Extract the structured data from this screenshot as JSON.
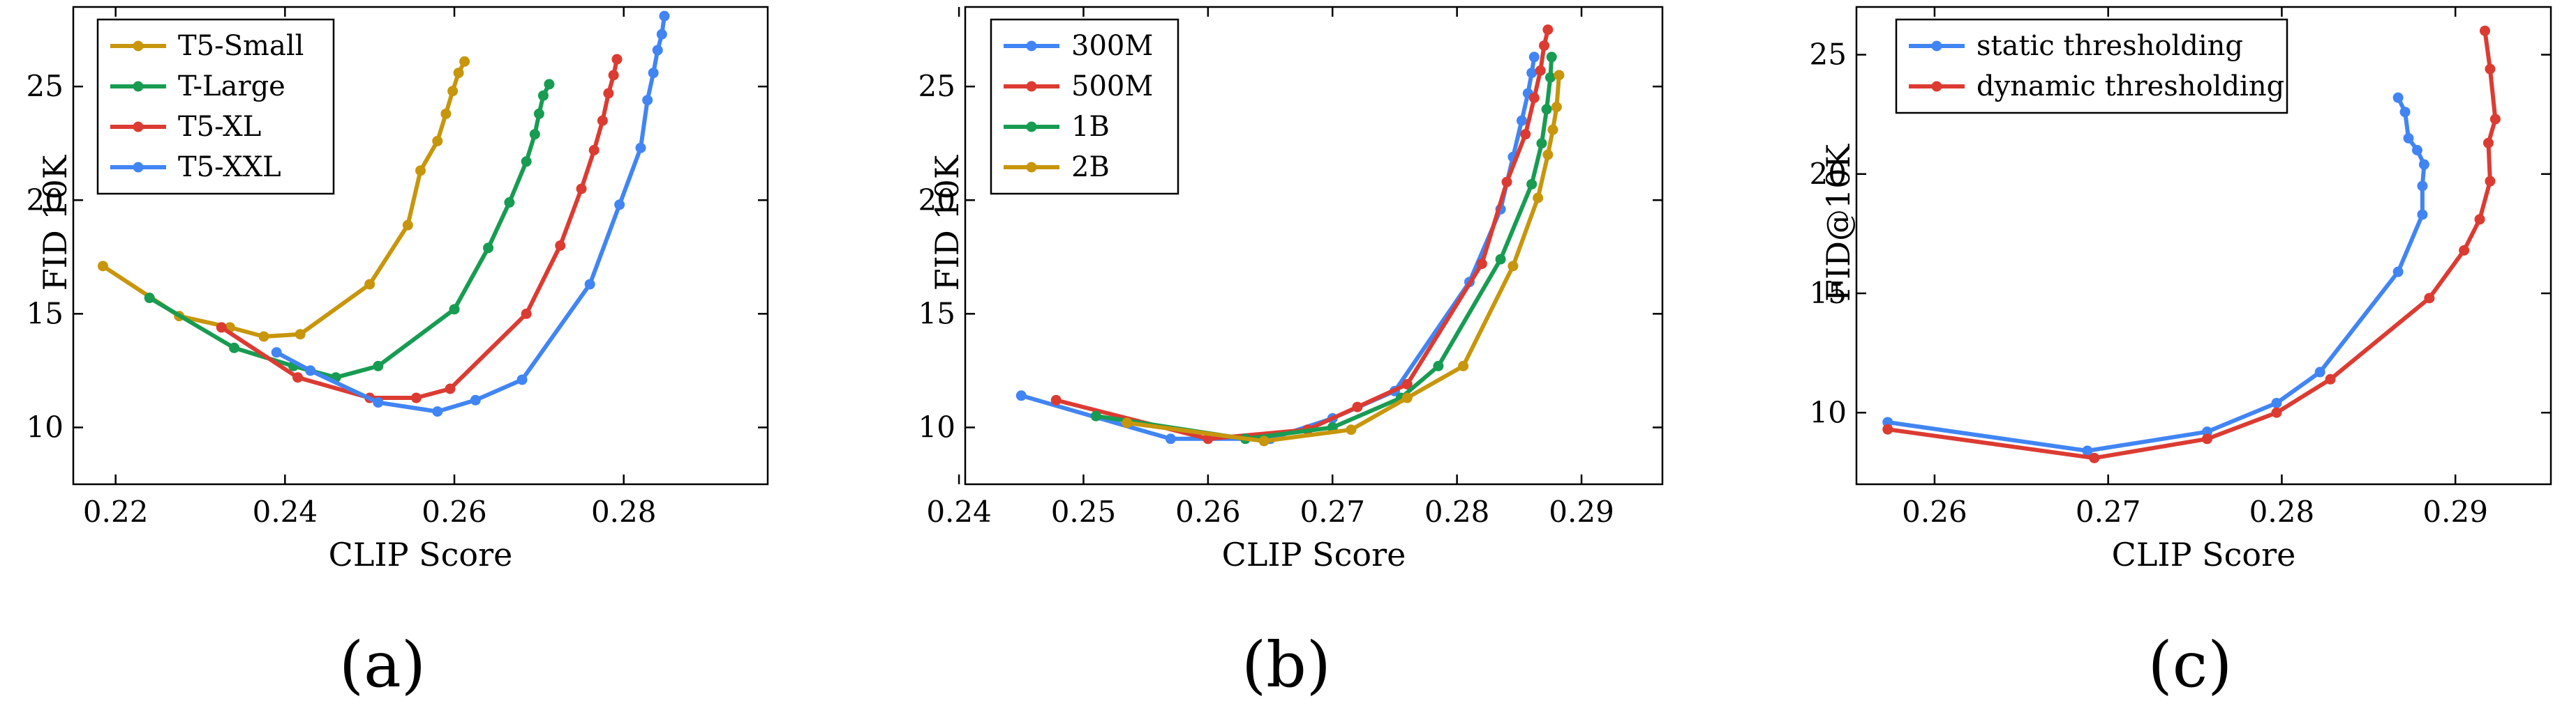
{
  "colors": {
    "gold": "#C8960C",
    "green": "#179C52",
    "red": "#DC3B32",
    "blue": "#4185F4"
  },
  "chart_data": [
    {
      "type": "line",
      "caption": "(a)",
      "xlabel": "CLIP Score",
      "ylabel": "FID 10K",
      "xlim": [
        0.215,
        0.297
      ],
      "ylim": [
        7.5,
        28.5
      ],
      "xticks": [
        0.22,
        0.24,
        0.26,
        0.28
      ],
      "xtick_labels": [
        "0.22",
        "0.24",
        "0.26",
        "0.28"
      ],
      "yticks": [
        10,
        15,
        20,
        25
      ],
      "ytick_labels": [
        "10",
        "15",
        "20",
        "25"
      ],
      "legend_position": "top-left",
      "series": [
        {
          "name": "T5-Small",
          "color": "#C8960C",
          "points": [
            [
              0.2185,
              17.1
            ],
            [
              0.2275,
              14.9
            ],
            [
              0.2335,
              14.4
            ],
            [
              0.2375,
              14.0
            ],
            [
              0.2418,
              14.1
            ],
            [
              0.25,
              16.3
            ],
            [
              0.2545,
              18.9
            ],
            [
              0.256,
              21.3
            ],
            [
              0.258,
              22.6
            ],
            [
              0.259,
              23.8
            ],
            [
              0.2598,
              24.8
            ],
            [
              0.2605,
              25.6
            ],
            [
              0.2612,
              26.1
            ]
          ]
        },
        {
          "name": "T-Large",
          "color": "#179C52",
          "points": [
            [
              0.224,
              15.7
            ],
            [
              0.234,
              13.5
            ],
            [
              0.241,
              12.7
            ],
            [
              0.246,
              12.2
            ],
            [
              0.251,
              12.7
            ],
            [
              0.26,
              15.2
            ],
            [
              0.264,
              17.9
            ],
            [
              0.2665,
              19.9
            ],
            [
              0.2685,
              21.7
            ],
            [
              0.2695,
              22.9
            ],
            [
              0.27,
              23.8
            ],
            [
              0.2705,
              24.6
            ],
            [
              0.2712,
              25.1
            ]
          ]
        },
        {
          "name": "T5-XL",
          "color": "#DC3B32",
          "points": [
            [
              0.2325,
              14.4
            ],
            [
              0.2415,
              12.2
            ],
            [
              0.25,
              11.3
            ],
            [
              0.2555,
              11.3
            ],
            [
              0.2595,
              11.7
            ],
            [
              0.2685,
              15.0
            ],
            [
              0.2725,
              18.0
            ],
            [
              0.275,
              20.5
            ],
            [
              0.2765,
              22.2
            ],
            [
              0.2775,
              23.5
            ],
            [
              0.2782,
              24.7
            ],
            [
              0.2788,
              25.5
            ],
            [
              0.2792,
              26.2
            ]
          ]
        },
        {
          "name": "T5-XXL",
          "color": "#4185F4",
          "points": [
            [
              0.239,
              13.3
            ],
            [
              0.243,
              12.5
            ],
            [
              0.251,
              11.1
            ],
            [
              0.258,
              10.7
            ],
            [
              0.2625,
              11.2
            ],
            [
              0.268,
              12.1
            ],
            [
              0.276,
              16.3
            ],
            [
              0.2795,
              19.8
            ],
            [
              0.282,
              22.3
            ],
            [
              0.2828,
              24.4
            ],
            [
              0.2835,
              25.6
            ],
            [
              0.284,
              26.6
            ],
            [
              0.2845,
              27.3
            ],
            [
              0.2848,
              28.1
            ]
          ]
        }
      ]
    },
    {
      "type": "line",
      "caption": "(b)",
      "xlabel": "CLIP Score",
      "ylabel": "FID 10K",
      "xlim": [
        0.2405,
        0.2965
      ],
      "ylim": [
        7.5,
        28.5
      ],
      "xticks": [
        0.24,
        0.25,
        0.26,
        0.27,
        0.28,
        0.29
      ],
      "xtick_labels": [
        "0.24",
        "0.25",
        "0.26",
        "0.27",
        "0.28",
        "0.29"
      ],
      "yticks": [
        10,
        15,
        20,
        25
      ],
      "ytick_labels": [
        "10",
        "15",
        "20",
        "25"
      ],
      "legend_position": "top-left",
      "series": [
        {
          "name": "300M",
          "color": "#4185F4",
          "points": [
            [
              0.245,
              11.4
            ],
            [
              0.257,
              9.5
            ],
            [
              0.265,
              9.5
            ],
            [
              0.27,
              10.4
            ],
            [
              0.275,
              11.6
            ],
            [
              0.281,
              16.4
            ],
            [
              0.2835,
              19.6
            ],
            [
              0.2845,
              21.9
            ],
            [
              0.2852,
              23.5
            ],
            [
              0.2857,
              24.7
            ],
            [
              0.286,
              25.6
            ],
            [
              0.2862,
              26.3
            ]
          ]
        },
        {
          "name": "500M",
          "color": "#DC3B32",
          "points": [
            [
              0.2478,
              11.2
            ],
            [
              0.26,
              9.5
            ],
            [
              0.268,
              9.9
            ],
            [
              0.272,
              10.9
            ],
            [
              0.276,
              11.9
            ],
            [
              0.282,
              17.2
            ],
            [
              0.284,
              20.8
            ],
            [
              0.2855,
              22.9
            ],
            [
              0.2862,
              24.5
            ],
            [
              0.2867,
              25.7
            ],
            [
              0.287,
              26.8
            ],
            [
              0.2873,
              27.5
            ]
          ]
        },
        {
          "name": "1B",
          "color": "#179C52",
          "points": [
            [
              0.251,
              10.5
            ],
            [
              0.263,
              9.5
            ],
            [
              0.27,
              10.0
            ],
            [
              0.2755,
              11.3
            ],
            [
              0.2785,
              12.7
            ],
            [
              0.2835,
              17.4
            ],
            [
              0.286,
              20.7
            ],
            [
              0.2868,
              22.5
            ],
            [
              0.2872,
              24.0
            ],
            [
              0.2875,
              25.4
            ],
            [
              0.2876,
              26.3
            ]
          ]
        },
        {
          "name": "2B",
          "color": "#C8960C",
          "points": [
            [
              0.2535,
              10.2
            ],
            [
              0.2645,
              9.4
            ],
            [
              0.2715,
              9.9
            ],
            [
              0.276,
              11.3
            ],
            [
              0.2805,
              12.7
            ],
            [
              0.2845,
              17.1
            ],
            [
              0.2865,
              20.1
            ],
            [
              0.2873,
              22.0
            ],
            [
              0.2877,
              23.1
            ],
            [
              0.288,
              24.1
            ],
            [
              0.2882,
              25.5
            ]
          ]
        }
      ]
    },
    {
      "type": "line",
      "caption": "(c)",
      "xlabel": "CLIP Score",
      "ylabel": "FID@10K",
      "xlim": [
        0.2555,
        0.2955
      ],
      "ylim": [
        7.0,
        27.0
      ],
      "xticks": [
        0.26,
        0.27,
        0.28,
        0.29
      ],
      "xtick_labels": [
        "0.26",
        "0.27",
        "0.28",
        "0.29"
      ],
      "yticks": [
        10,
        15,
        20,
        25
      ],
      "ytick_labels": [
        "10",
        "15",
        "20",
        "25"
      ],
      "legend_position": "top-left",
      "series": [
        {
          "name": "static thresholding",
          "color": "#4185F4",
          "points": [
            [
              0.2573,
              9.6
            ],
            [
              0.2688,
              8.4
            ],
            [
              0.2757,
              9.2
            ],
            [
              0.2797,
              10.4
            ],
            [
              0.2822,
              11.7
            ],
            [
              0.2867,
              15.9
            ],
            [
              0.2881,
              18.3
            ],
            [
              0.2881,
              19.5
            ],
            [
              0.2882,
              20.4
            ],
            [
              0.2878,
              21.0
            ],
            [
              0.2873,
              21.5
            ],
            [
              0.2871,
              22.6
            ],
            [
              0.2867,
              23.2
            ]
          ]
        },
        {
          "name": "dynamic thresholding",
          "color": "#DC3B32",
          "points": [
            [
              0.2573,
              9.3
            ],
            [
              0.2692,
              8.1
            ],
            [
              0.2757,
              8.9
            ],
            [
              0.2797,
              10.0
            ],
            [
              0.2828,
              11.4
            ],
            [
              0.2885,
              14.8
            ],
            [
              0.2905,
              16.8
            ],
            [
              0.2914,
              18.1
            ],
            [
              0.292,
              19.7
            ],
            [
              0.2919,
              21.3
            ],
            [
              0.2923,
              22.3
            ],
            [
              0.292,
              24.4
            ],
            [
              0.2917,
              26.0
            ]
          ]
        }
      ]
    }
  ]
}
